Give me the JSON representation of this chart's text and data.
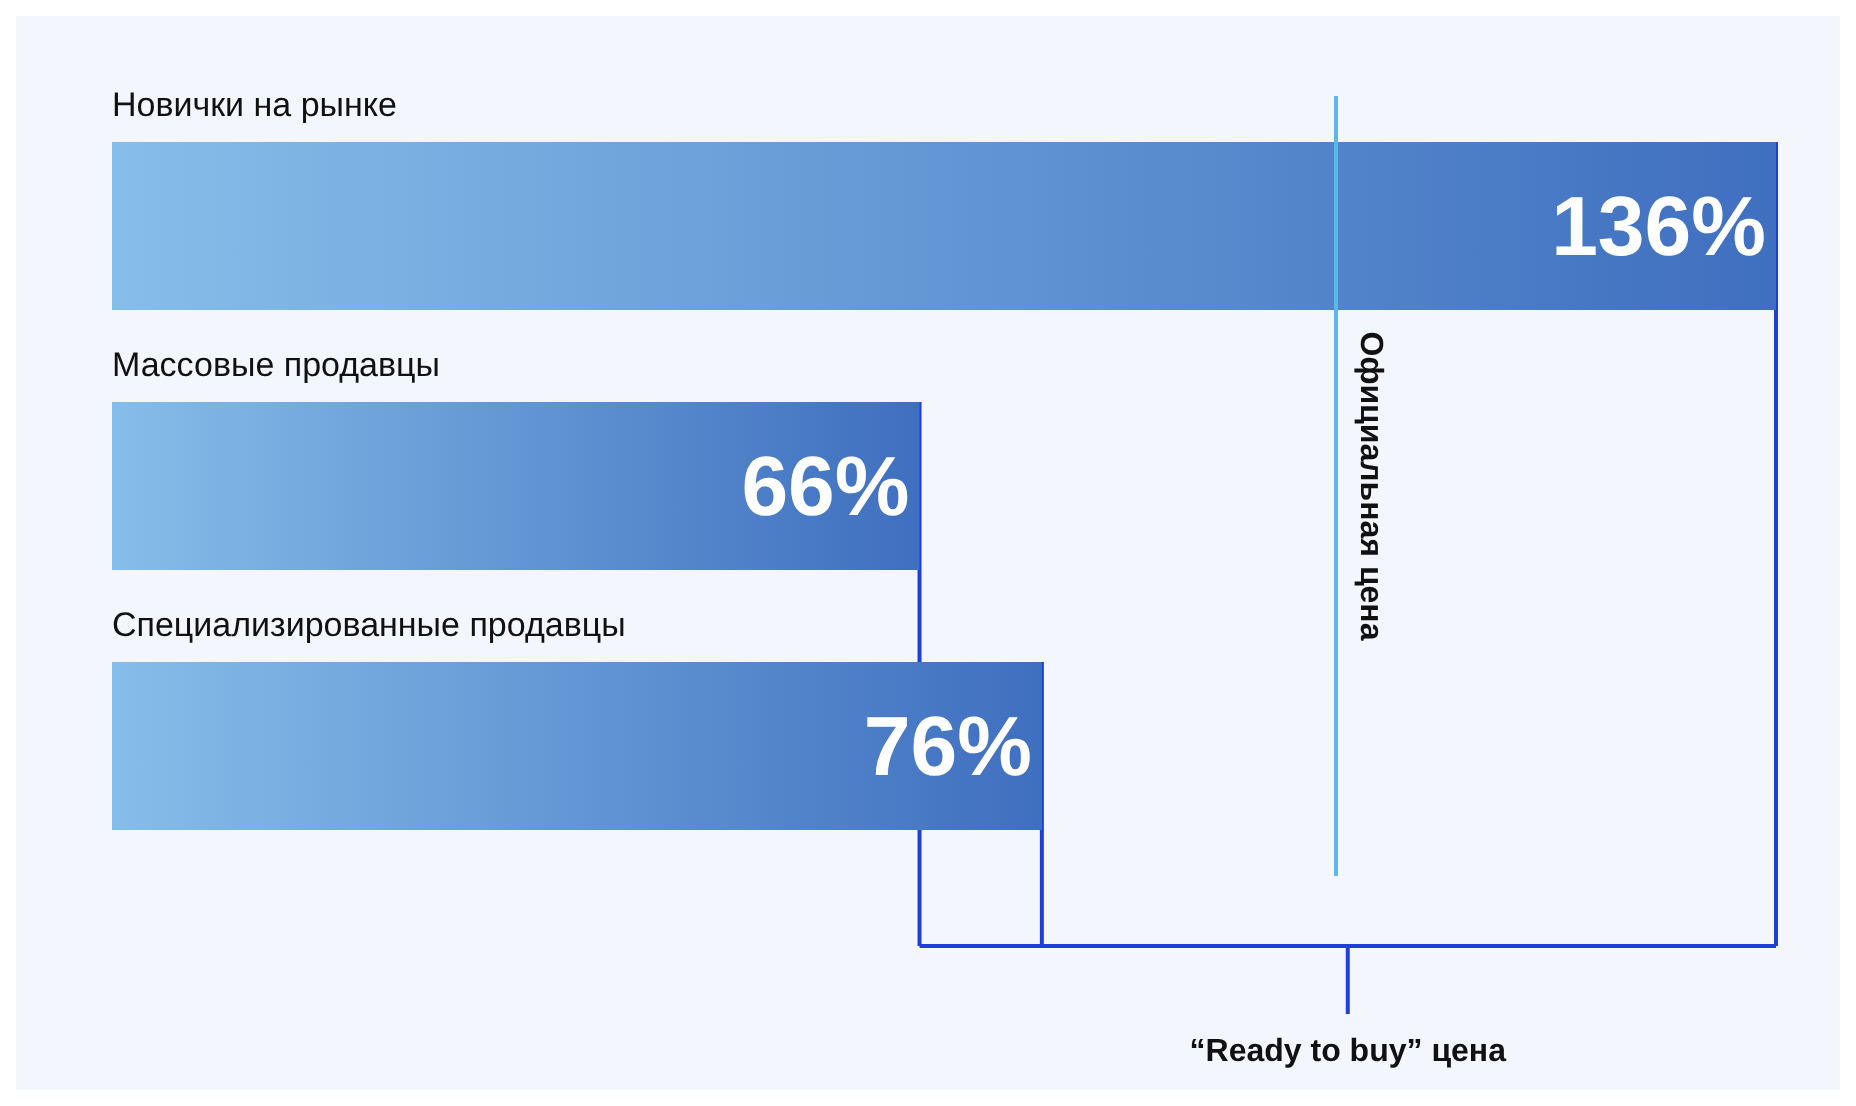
{
  "chart_data": {
    "type": "bar",
    "orientation": "horizontal",
    "categories": [
      "Новички на рынке",
      "Массовые продавцы",
      "Специализированные продавцы"
    ],
    "values": [
      136,
      66,
      76
    ],
    "color": "#3f6fbf",
    "value_labels": [
      "136%",
      "66%",
      "76%"
    ],
    "ref_lines": [
      {
        "axis": "x",
        "value": 100,
        "label": "Официальная цена",
        "color": "#5bb8e8"
      }
    ],
    "annotations": [
      "“Ready to buy” цена"
    ]
  }
}
